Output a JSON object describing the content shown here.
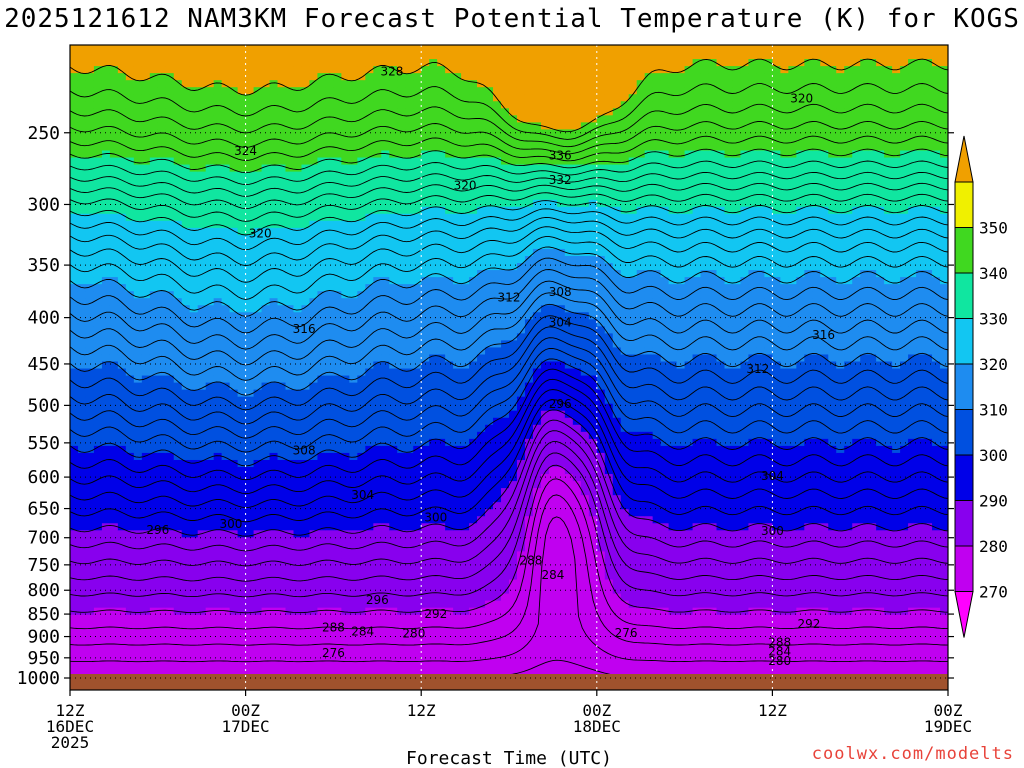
{
  "chart_data": {
    "type": "heatmap",
    "title": "2025121612 NAM3KM Forecast Potential Temperature (K) for KOGS",
    "xlabel": "Forecast Time (UTC)",
    "ylabel": "",
    "y_axis": {
      "ticks": [
        250,
        300,
        350,
        400,
        450,
        500,
        550,
        600,
        650,
        700,
        750,
        800,
        850,
        900,
        950,
        1000
      ],
      "range": [
        1000,
        200
      ],
      "scale": "log-pressure"
    },
    "x_axis": {
      "ticks": [
        {
          "hour": 0,
          "lines": [
            "12Z",
            "16DEC",
            "2025"
          ]
        },
        {
          "hour": 12,
          "lines": [
            "00Z",
            "17DEC"
          ]
        },
        {
          "hour": 24,
          "lines": [
            "12Z"
          ]
        },
        {
          "hour": 36,
          "lines": [
            "00Z",
            "18DEC"
          ]
        },
        {
          "hour": 48,
          "lines": [
            "12Z"
          ]
        },
        {
          "hour": 60,
          "lines": [
            "00Z",
            "19DEC"
          ]
        }
      ],
      "range": [
        0,
        60
      ]
    },
    "colorbar": {
      "levels": [
        270,
        280,
        290,
        300,
        310,
        320,
        330,
        340,
        350
      ],
      "colors": [
        "#ff00ff",
        "#c000f0",
        "#8800ee",
        "#0000e8",
        "#0050e0",
        "#1e8cf0",
        "#12c6f2",
        "#10e6a0",
        "#40d820",
        "#f0f000",
        "#f0a000"
      ]
    },
    "contour_levels": [
      270,
      272,
      274,
      276,
      278,
      280,
      282,
      284,
      286,
      288,
      290,
      292,
      294,
      296,
      298,
      300,
      302,
      304,
      306,
      308,
      310,
      312,
      314,
      316,
      318,
      320,
      322,
      324,
      326,
      328,
      330,
      332,
      334,
      336,
      338,
      340,
      342,
      344,
      346,
      348,
      350
    ],
    "contour_labels": [
      {
        "text": "328",
        "hour": 22.0,
        "p": 214
      },
      {
        "text": "324",
        "hour": 12.0,
        "p": 262
      },
      {
        "text": "320",
        "hour": 27.0,
        "p": 286
      },
      {
        "text": "320",
        "hour": 50.0,
        "p": 229
      },
      {
        "text": "336",
        "hour": 33.5,
        "p": 265
      },
      {
        "text": "332",
        "hour": 33.5,
        "p": 282
      },
      {
        "text": "320",
        "hour": 13.0,
        "p": 323
      },
      {
        "text": "316",
        "hour": 16.0,
        "p": 412
      },
      {
        "text": "316",
        "hour": 51.5,
        "p": 418
      },
      {
        "text": "312",
        "hour": 30.0,
        "p": 380
      },
      {
        "text": "308",
        "hour": 33.5,
        "p": 375
      },
      {
        "text": "304",
        "hour": 33.5,
        "p": 405
      },
      {
        "text": "312",
        "hour": 47.0,
        "p": 456
      },
      {
        "text": "296",
        "hour": 33.5,
        "p": 498
      },
      {
        "text": "308",
        "hour": 16.0,
        "p": 561
      },
      {
        "text": "304",
        "hour": 20.0,
        "p": 628
      },
      {
        "text": "304",
        "hour": 48.0,
        "p": 598
      },
      {
        "text": "296",
        "hour": 6.0,
        "p": 686
      },
      {
        "text": "300",
        "hour": 11.0,
        "p": 676
      },
      {
        "text": "300",
        "hour": 25.0,
        "p": 665
      },
      {
        "text": "300",
        "hour": 48.0,
        "p": 688
      },
      {
        "text": "288",
        "hour": 31.5,
        "p": 742
      },
      {
        "text": "284",
        "hour": 33.0,
        "p": 770
      },
      {
        "text": "296",
        "hour": 21.0,
        "p": 820
      },
      {
        "text": "292",
        "hour": 25.0,
        "p": 850
      },
      {
        "text": "292",
        "hour": 50.5,
        "p": 872
      },
      {
        "text": "288",
        "hour": 18.0,
        "p": 880
      },
      {
        "text": "284",
        "hour": 20.0,
        "p": 889
      },
      {
        "text": "280",
        "hour": 23.5,
        "p": 893
      },
      {
        "text": "276",
        "hour": 18.0,
        "p": 939
      },
      {
        "text": "276",
        "hour": 38.0,
        "p": 892
      },
      {
        "text": "288",
        "hour": 48.5,
        "p": 914
      },
      {
        "text": "284",
        "hour": 48.5,
        "p": 935
      },
      {
        "text": "280",
        "hour": 48.5,
        "p": 958
      }
    ]
  },
  "credit": "coolwx.com/modelts"
}
